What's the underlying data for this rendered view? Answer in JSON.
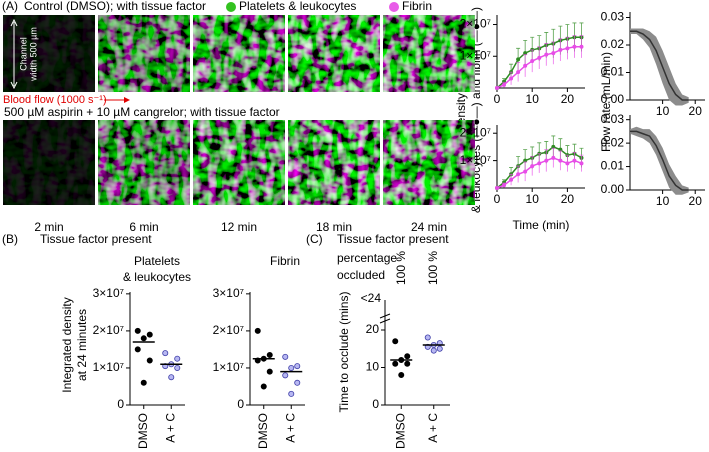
{
  "panel_a": {
    "letter": "(A)",
    "control_title": "Control (DMSO); with tissue factor",
    "legend": [
      {
        "name": "Platelets & leukocytes",
        "color": "#33c21f"
      },
      {
        "name": "Fibrin",
        "color": "#e85ce8"
      }
    ],
    "channel_label": [
      "Channel",
      "width 500 µm"
    ],
    "flow_label": "Blood flow (1000 s⁻¹)",
    "treated_title": "500 µM aspirin + 10 µM cangrelor; with tissue factor",
    "times": [
      "2 min",
      "6 min",
      "12 min",
      "18 min",
      "24 min"
    ],
    "density_label": [
      "Integrated density of platelets",
      "& leukocytes (—●—) and fibrin (—●—)"
    ],
    "time_axis_label": "Time (min)",
    "flow_axis_label": "Flow rate (mL/min)"
  },
  "panel_b": {
    "letter": "(B)",
    "title": "Tissue factor present",
    "subtitles": [
      [
        "Platelets",
        "& leukocytes"
      ],
      [
        "Fibrin"
      ]
    ],
    "y_label": [
      "Integrated density",
      "at 24 minutes"
    ]
  },
  "panel_c": {
    "letter": "(C)",
    "title": "Tissue factor present",
    "pct_label": [
      "percentage",
      "occluded"
    ],
    "pct_values": [
      "100 %",
      "100 %"
    ],
    "top_label": "<24",
    "y_label": "Time to occlude (mins)"
  },
  "chart_data": [
    {
      "type": "line",
      "x": [
        0,
        2,
        4,
        6,
        8,
        10,
        12,
        14,
        16,
        18,
        20,
        22,
        24
      ],
      "xlim": [
        0,
        25
      ],
      "xticks": [
        0,
        10,
        20
      ],
      "ylim": [
        0,
        23000000
      ],
      "yticks": [
        {
          "value": 10000000,
          "label": "1×10⁷"
        },
        {
          "value": 20000000,
          "label": "2×10⁷"
        }
      ],
      "series": [
        {
          "color": "#2e8b22",
          "values": [
            0,
            2000000,
            5000000,
            9000000,
            11000000,
            12000000,
            12500000,
            13500000,
            14000000,
            15000000,
            15500000,
            16000000,
            16000000
          ],
          "errors": [
            0,
            1000000,
            2500000,
            3500000,
            4000000,
            4000000,
            4000000,
            4000000,
            4500000,
            4500000,
            4500000,
            4500000,
            4500000
          ]
        },
        {
          "color": "#e84ce8",
          "values": [
            0,
            1000000,
            3000000,
            5000000,
            7000000,
            8500000,
            9500000,
            10500000,
            11000000,
            12000000,
            12500000,
            13000000,
            13000000
          ],
          "errors": [
            0,
            800000,
            2000000,
            3000000,
            3500000,
            3500000,
            3500000,
            3500000,
            3500000,
            3500000,
            3500000,
            3500000,
            3500000
          ]
        }
      ]
    },
    {
      "type": "line",
      "x": [
        0,
        2,
        4,
        6,
        8,
        10,
        12,
        14,
        16,
        18,
        20,
        22,
        24
      ],
      "xlim": [
        0,
        25
      ],
      "xticks": [
        0,
        10,
        20
      ],
      "ylim": [
        0,
        23000000
      ],
      "yticks": [
        {
          "value": 10000000,
          "label": "1×10⁷"
        },
        {
          "value": 20000000,
          "label": "2×10⁷"
        }
      ],
      "series": [
        {
          "color": "#2e8b22",
          "values": [
            0,
            2000000,
            5000000,
            8000000,
            10000000,
            11000000,
            12500000,
            13000000,
            15000000,
            14000000,
            12000000,
            12500000,
            11000000
          ],
          "errors": [
            0,
            1000000,
            2500000,
            3500000,
            4000000,
            4000000,
            4000000,
            4000000,
            4000000,
            4000000,
            3500000,
            3500000,
            3500000
          ]
        },
        {
          "color": "#e84ce8",
          "values": [
            0,
            1000000,
            3000000,
            5000000,
            6000000,
            8000000,
            9000000,
            10000000,
            11000000,
            10000000,
            9000000,
            10000000,
            9000000
          ],
          "errors": [
            0,
            800000,
            2000000,
            3000000,
            3500000,
            3500000,
            3500000,
            4000000,
            3500000,
            3500000,
            3000000,
            3000000,
            3000000
          ]
        }
      ]
    },
    {
      "type": "band",
      "x": [
        0,
        2,
        4,
        6,
        8,
        10,
        12,
        14,
        16,
        18
      ],
      "xlim": [
        0,
        23
      ],
      "xticks": [
        10,
        20
      ],
      "ylim": [
        0,
        0.032
      ],
      "yticks": [
        {
          "value": 0,
          "label": "0.00"
        },
        {
          "value": 0.01,
          "label": "0.01"
        },
        {
          "value": 0.02,
          "label": "0.02"
        },
        {
          "value": 0.03,
          "label": "0.03"
        }
      ],
      "color": "#333333",
      "band_color": "#8c8c8c",
      "values": [
        0.025,
        0.025,
        0.024,
        0.022,
        0.018,
        0.012,
        0.006,
        0.002,
        0,
        0
      ],
      "errors": [
        0.001,
        0.001,
        0.002,
        0.003,
        0.005,
        0.006,
        0.006,
        0.004,
        0.002,
        0.001
      ]
    },
    {
      "type": "band",
      "x": [
        0,
        2,
        4,
        6,
        8,
        10,
        12,
        14,
        16,
        18
      ],
      "xlim": [
        0,
        23
      ],
      "xticks": [
        10,
        20
      ],
      "ylim": [
        0,
        0.032
      ],
      "yticks": [
        {
          "value": 0,
          "label": "0.00"
        },
        {
          "value": 0.01,
          "label": "0.01"
        },
        {
          "value": 0.02,
          "label": "0.02"
        },
        {
          "value": 0.03,
          "label": "0.03"
        }
      ],
      "color": "#333333",
      "band_color": "#8c8c8c",
      "values": [
        0.025,
        0.025,
        0.024,
        0.023,
        0.019,
        0.013,
        0.006,
        0.002,
        0,
        0
      ],
      "errors": [
        0.001,
        0.002,
        0.002,
        0.003,
        0.004,
        0.005,
        0.005,
        0.004,
        0.002,
        0.001
      ]
    },
    {
      "type": "dot",
      "ylim": [
        0,
        30500000
      ],
      "yticks": [
        0,
        {
          "value": 10000000,
          "label": "1×10⁷"
        },
        {
          "value": 20000000,
          "label": "2×10⁷"
        },
        {
          "value": 30000000,
          "label": "3×10⁷"
        }
      ],
      "groups": [
        {
          "label": "DMSO",
          "color": "#000000",
          "edge": "#000000",
          "values": [
            20000000,
            19000000,
            18000000,
            15000000,
            12000000,
            6000000
          ],
          "median": 17000000
        },
        {
          "label": "A + C",
          "color": "#b7b7f2",
          "edge": "#3f3fa8",
          "values": [
            14000000,
            12500000,
            11000000,
            10500000,
            10000000,
            7500000
          ],
          "median": 11000000
        }
      ]
    },
    {
      "type": "dot",
      "ylim": [
        0,
        30500000
      ],
      "yticks": [
        0,
        {
          "value": 10000000,
          "label": "1×10⁷"
        },
        {
          "value": 20000000,
          "label": "2×10⁷"
        },
        {
          "value": 30000000,
          "label": "3×10⁷"
        }
      ],
      "groups": [
        {
          "label": "DMSO",
          "color": "#000000",
          "edge": "#000000",
          "values": [
            20000000,
            13500000,
            12500000,
            12000000,
            9000000,
            5000000
          ],
          "median": 12500000
        },
        {
          "label": "A + C",
          "color": "#b7b7f2",
          "edge": "#3f3fa8",
          "values": [
            13000000,
            10500000,
            10000000,
            8000000,
            6000000,
            3000000
          ],
          "median": 9000000
        }
      ]
    },
    {
      "type": "dot",
      "ylim": [
        0,
        28
      ],
      "yticks": [
        0,
        10,
        20
      ],
      "groups": [
        {
          "label": "DMSO",
          "color": "#000000",
          "edge": "#000000",
          "values": [
            17,
            13,
            12,
            11,
            11,
            8
          ],
          "median": 12
        },
        {
          "label": "A + C",
          "color": "#b7b7f2",
          "edge": "#3f3fa8",
          "values": [
            18,
            16.5,
            16,
            15.5,
            15,
            14.5
          ],
          "median": 16
        }
      ]
    }
  ]
}
